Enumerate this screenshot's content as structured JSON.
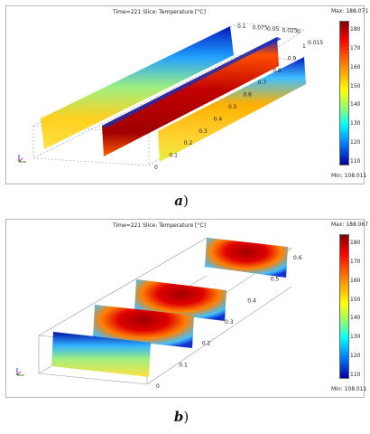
{
  "figure_a": {
    "header": "Time=221   Slice: Temperature [°C]",
    "colorbar": {
      "max_label": "Max: 188.071",
      "min_label": "Min: 108.011",
      "ticks": [
        "180",
        "170",
        "160",
        "150",
        "140",
        "130",
        "120",
        "110"
      ]
    },
    "axis_y_ticks": [
      "0",
      "0.1",
      "0.2",
      "0.3",
      "0.4",
      "0.5",
      "0.6",
      "0.7",
      "0.8",
      "0.9",
      "1"
    ],
    "axis_x_ticks": [
      "0.1",
      "0.075",
      "0.05",
      "0.025",
      "0"
    ],
    "axis_z_ticks": [
      "0.015"
    ],
    "caption_letter": "a"
  },
  "figure_b": {
    "header": "Time=221   Slice: Temperature [°C]",
    "colorbar": {
      "max_label": "Max: 188.067",
      "min_label": "Min: 108.011",
      "ticks": [
        "180",
        "170",
        "160",
        "150",
        "140",
        "130",
        "120",
        "110"
      ]
    },
    "axis_y_ticks": [
      "0",
      "0.1",
      "0.2",
      "0.3",
      "0.4",
      "0.5",
      "0.6"
    ],
    "caption_letter": "b"
  },
  "colors": {
    "hot": "#a00000",
    "warm": "#ff9000",
    "mid": "#e8f040",
    "cool": "#40d0ff",
    "cold": "#0018c0"
  }
}
